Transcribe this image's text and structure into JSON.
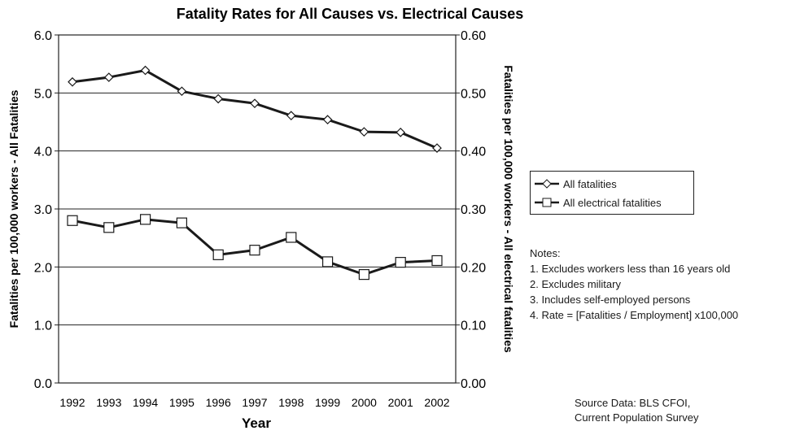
{
  "chart_data": {
    "type": "line",
    "title": "Fatality Rates for All Causes vs. Electrical Causes",
    "xlabel": "Year",
    "ylabel_left": "Fatalities per 100,000 workers - All Fatalities",
    "ylabel_right": "Fatalities per 100,000 workers - All electrical fatalities",
    "categories": [
      "1992",
      "1993",
      "1994",
      "1995",
      "1996",
      "1997",
      "1998",
      "1999",
      "2000",
      "2001",
      "2002"
    ],
    "ylim_left": [
      0,
      6
    ],
    "ylim_right": [
      0,
      0.6
    ],
    "yticks_left": [
      "0.0",
      "1.0",
      "2.0",
      "3.0",
      "4.0",
      "5.0",
      "6.0"
    ],
    "yticks_right": [
      "0.00",
      "0.10",
      "0.20",
      "0.30",
      "0.40",
      "0.50",
      "0.60"
    ],
    "grid": true,
    "legend_placement": "right",
    "series": [
      {
        "name": "All fatalities",
        "axis": "left",
        "marker": "diamond",
        "values": [
          5.19,
          5.27,
          5.39,
          5.03,
          4.9,
          4.82,
          4.61,
          4.54,
          4.33,
          4.32,
          4.05
        ]
      },
      {
        "name": "All electrical fatalities",
        "axis": "right",
        "marker": "square",
        "values": [
          0.28,
          0.268,
          0.282,
          0.276,
          0.221,
          0.229,
          0.251,
          0.209,
          0.187,
          0.208,
          0.211
        ]
      }
    ]
  },
  "notes": {
    "heading": "Notes:",
    "items": [
      "1.  Excludes workers less than 16 years old",
      "2.  Excludes military",
      "3.  Includes self-employed persons",
      "4.  Rate = [Fatalities / Employment] x100,000"
    ]
  },
  "source": {
    "line1": "Source Data: BLS CFOI,",
    "line2": "Current Population Survey"
  },
  "colors": {
    "line": "#1a1a1a",
    "marker_fill": "#ffffff"
  }
}
